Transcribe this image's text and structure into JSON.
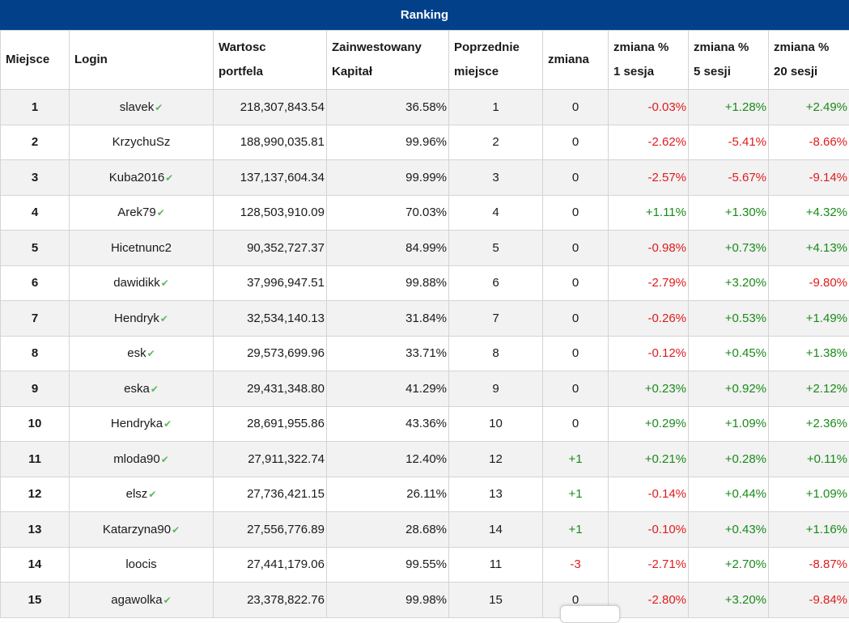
{
  "title": "Ranking",
  "columns": [
    {
      "l1": "Miejsce",
      "l2": ""
    },
    {
      "l1": "Login",
      "l2": ""
    },
    {
      "l1": "Wartosc",
      "l2": "portfela"
    },
    {
      "l1": "Zainwestowany",
      "l2": "Kapitał"
    },
    {
      "l1": "Poprzednie",
      "l2": "miejsce"
    },
    {
      "l1": "zmiana",
      "l2": ""
    },
    {
      "l1": "zmiana %",
      "l2": "1 sesja"
    },
    {
      "l1": "zmiana %",
      "l2": "5 sesji"
    },
    {
      "l1": "zmiana %",
      "l2": "20 sesji"
    }
  ],
  "rows": [
    {
      "rank": "1",
      "login": "slavek",
      "verified": true,
      "value": "218,307,843.54",
      "invested": "36.58%",
      "prev": "1",
      "change": "0",
      "s1": "-0.03%",
      "s5": "+1.28%",
      "s20": "+2.49%"
    },
    {
      "rank": "2",
      "login": "KrzychuSz",
      "verified": false,
      "value": "188,990,035.81",
      "invested": "99.96%",
      "prev": "2",
      "change": "0",
      "s1": "-2.62%",
      "s5": "-5.41%",
      "s20": "-8.66%"
    },
    {
      "rank": "3",
      "login": "Kuba2016",
      "verified": true,
      "value": "137,137,604.34",
      "invested": "99.99%",
      "prev": "3",
      "change": "0",
      "s1": "-2.57%",
      "s5": "-5.67%",
      "s20": "-9.14%"
    },
    {
      "rank": "4",
      "login": "Arek79",
      "verified": true,
      "value": "128,503,910.09",
      "invested": "70.03%",
      "prev": "4",
      "change": "0",
      "s1": "+1.11%",
      "s5": "+1.30%",
      "s20": "+4.32%"
    },
    {
      "rank": "5",
      "login": "Hicetnunc2",
      "verified": false,
      "value": "90,352,727.37",
      "invested": "84.99%",
      "prev": "5",
      "change": "0",
      "s1": "-0.98%",
      "s5": "+0.73%",
      "s20": "+4.13%"
    },
    {
      "rank": "6",
      "login": "dawidikk",
      "verified": true,
      "value": "37,996,947.51",
      "invested": "99.88%",
      "prev": "6",
      "change": "0",
      "s1": "-2.79%",
      "s5": "+3.20%",
      "s20": "-9.80%"
    },
    {
      "rank": "7",
      "login": "Hendryk",
      "verified": true,
      "value": "32,534,140.13",
      "invested": "31.84%",
      "prev": "7",
      "change": "0",
      "s1": "-0.26%",
      "s5": "+0.53%",
      "s20": "+1.49%"
    },
    {
      "rank": "8",
      "login": "esk",
      "verified": true,
      "value": "29,573,699.96",
      "invested": "33.71%",
      "prev": "8",
      "change": "0",
      "s1": "-0.12%",
      "s5": "+0.45%",
      "s20": "+1.38%"
    },
    {
      "rank": "9",
      "login": "eska",
      "verified": true,
      "value": "29,431,348.80",
      "invested": "41.29%",
      "prev": "9",
      "change": "0",
      "s1": "+0.23%",
      "s5": "+0.92%",
      "s20": "+2.12%"
    },
    {
      "rank": "10",
      "login": "Hendryka",
      "verified": true,
      "value": "28,691,955.86",
      "invested": "43.36%",
      "prev": "10",
      "change": "0",
      "s1": "+0.29%",
      "s5": "+1.09%",
      "s20": "+2.36%"
    },
    {
      "rank": "11",
      "login": "mloda90",
      "verified": true,
      "value": "27,911,322.74",
      "invested": "12.40%",
      "prev": "12",
      "change": "+1",
      "s1": "+0.21%",
      "s5": "+0.28%",
      "s20": "+0.11%"
    },
    {
      "rank": "12",
      "login": "elsz",
      "verified": true,
      "value": "27,736,421.15",
      "invested": "26.11%",
      "prev": "13",
      "change": "+1",
      "s1": "-0.14%",
      "s5": "+0.44%",
      "s20": "+1.09%"
    },
    {
      "rank": "13",
      "login": "Katarzyna90",
      "verified": true,
      "value": "27,556,776.89",
      "invested": "28.68%",
      "prev": "14",
      "change": "+1",
      "s1": "-0.10%",
      "s5": "+0.43%",
      "s20": "+1.16%"
    },
    {
      "rank": "14",
      "login": "loocis",
      "verified": false,
      "value": "27,441,179.06",
      "invested": "99.55%",
      "prev": "11",
      "change": "-3",
      "s1": "-2.71%",
      "s5": "+2.70%",
      "s20": "-8.87%"
    },
    {
      "rank": "15",
      "login": "agawolka",
      "verified": true,
      "value": "23,378,822.76",
      "invested": "99.98%",
      "prev": "15",
      "change": "0",
      "s1": "-2.80%",
      "s5": "+3.20%",
      "s20": "-9.84%"
    }
  ],
  "icons": {
    "verified": "check-icon"
  },
  "colors": {
    "header": "#02418a",
    "positive": "#1a8a1a",
    "negative": "#e01b1b",
    "stripe": "#f2f2f2",
    "check": "#5cb85c"
  }
}
